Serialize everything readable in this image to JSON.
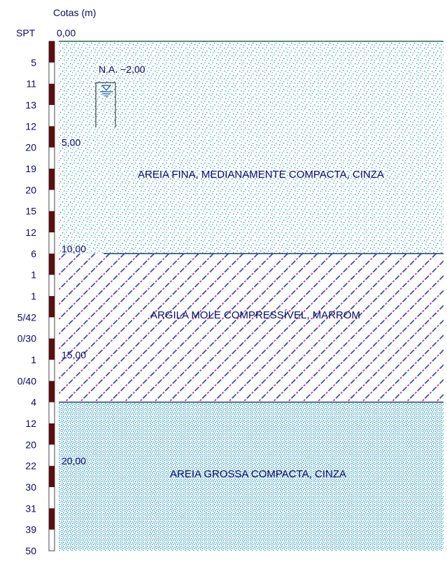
{
  "header": {
    "cotas_label": "Cotas (m)",
    "spt_label": "SPT",
    "top_elevation": "0,00"
  },
  "water_table": {
    "label": "N.A. −2,00",
    "depth_m": 2.0
  },
  "depth_axis": {
    "min_m": 0,
    "max_m": 24,
    "marks": [
      {
        "depth_m": 5,
        "label": "5,00"
      },
      {
        "depth_m": 10,
        "label": "10,00"
      },
      {
        "depth_m": 15,
        "label": "15,00"
      },
      {
        "depth_m": 20,
        "label": "20,00"
      }
    ]
  },
  "spt": {
    "values": [
      "5",
      "11",
      "13",
      "12",
      "20",
      "19",
      "20",
      "15",
      "12",
      "6",
      "1",
      "1",
      "5/42",
      "0/30",
      "1",
      "0/40",
      "4",
      "12",
      "20",
      "22",
      "30",
      "31",
      "39",
      "50"
    ]
  },
  "layers": [
    {
      "name": "AREIA FINA, MEDIANAMENTE COMPACTA, CINZA",
      "top_m": 0,
      "bottom_m": 10,
      "pattern": "fine-sand"
    },
    {
      "name": "ARGILA MOLE COMPRESSÍVEL, MARROM",
      "top_m": 10,
      "bottom_m": 17,
      "pattern": "soft-clay"
    },
    {
      "name": "AREIA GROSSA COMPACTA, CINZA",
      "top_m": 17,
      "bottom_m": 24,
      "pattern": "coarse-sand"
    }
  ],
  "colors": {
    "sand_dots": "#2a9fc0",
    "clay_hatch_primary": "#2d3a9a",
    "clay_hatch_secondary": "#b02aa0",
    "boundary_line": "#1f3c6e",
    "spt_bar_dark": "#5a1010",
    "text": "#0a0a6e"
  }
}
